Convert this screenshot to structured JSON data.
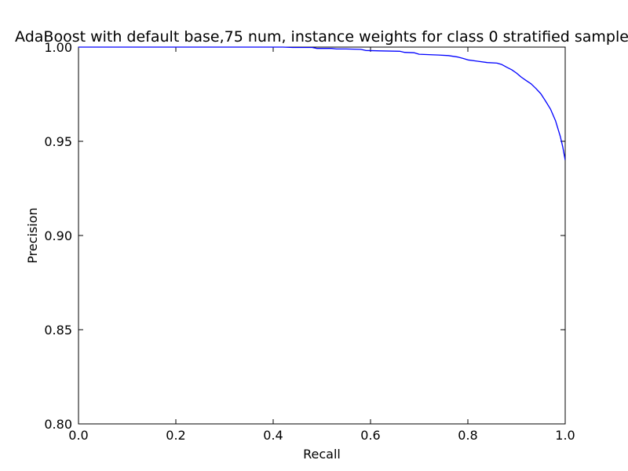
{
  "chart_data": {
    "type": "line",
    "title": "AdaBoost with default base,75 num, instance weights for class 0 stratified sample",
    "xlabel": "Recall",
    "ylabel": "Precision",
    "xlim": [
      0.0,
      1.0
    ],
    "ylim": [
      0.8,
      1.0
    ],
    "xticks": [
      0.0,
      0.2,
      0.4,
      0.6,
      0.8,
      1.0
    ],
    "xtick_labels": [
      "0.0",
      "0.2",
      "0.4",
      "0.6",
      "0.8",
      "1.0"
    ],
    "yticks": [
      0.8,
      0.85,
      0.9,
      0.95,
      1.0
    ],
    "ytick_labels": [
      "0.80",
      "0.85",
      "0.90",
      "0.95",
      "1.00"
    ],
    "grid": false,
    "legend": "none",
    "series": [
      {
        "color": "#0000ff",
        "points": [
          [
            0.0,
            1.0
          ],
          [
            0.42,
            1.0
          ],
          [
            0.44,
            0.9998
          ],
          [
            0.48,
            0.9998
          ],
          [
            0.49,
            0.9993
          ],
          [
            0.52,
            0.9993
          ],
          [
            0.53,
            0.999
          ],
          [
            0.55,
            0.999
          ],
          [
            0.58,
            0.9988
          ],
          [
            0.59,
            0.9982
          ],
          [
            0.62,
            0.998
          ],
          [
            0.66,
            0.9978
          ],
          [
            0.67,
            0.9972
          ],
          [
            0.69,
            0.997
          ],
          [
            0.7,
            0.9962
          ],
          [
            0.72,
            0.996
          ],
          [
            0.74,
            0.9958
          ],
          [
            0.76,
            0.9955
          ],
          [
            0.78,
            0.9947
          ],
          [
            0.79,
            0.994
          ],
          [
            0.8,
            0.9932
          ],
          [
            0.82,
            0.9925
          ],
          [
            0.84,
            0.9918
          ],
          [
            0.86,
            0.9915
          ],
          [
            0.87,
            0.9907
          ],
          [
            0.88,
            0.9893
          ],
          [
            0.89,
            0.988
          ],
          [
            0.9,
            0.9862
          ],
          [
            0.91,
            0.984
          ],
          [
            0.92,
            0.9822
          ],
          [
            0.93,
            0.9805
          ],
          [
            0.94,
            0.978
          ],
          [
            0.95,
            0.9752
          ],
          [
            0.96,
            0.9712
          ],
          [
            0.97,
            0.967
          ],
          [
            0.98,
            0.961
          ],
          [
            0.99,
            0.9525
          ],
          [
            0.995,
            0.947
          ],
          [
            1.0,
            0.94
          ]
        ]
      }
    ]
  }
}
